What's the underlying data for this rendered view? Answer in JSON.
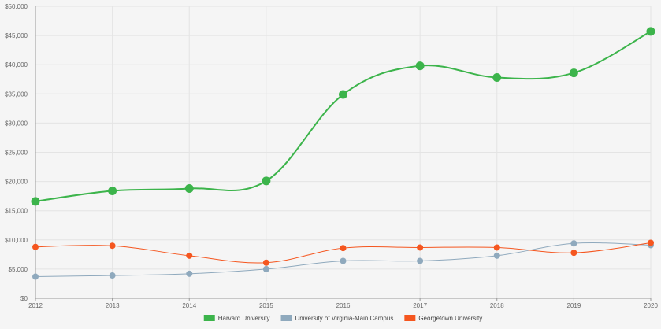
{
  "chart_data": {
    "type": "line",
    "title": "",
    "xlabel": "",
    "ylabel": "",
    "categories": [
      "2012",
      "2013",
      "2014",
      "2015",
      "2016",
      "2017",
      "2018",
      "2019",
      "2020"
    ],
    "ylim": [
      0,
      50000
    ],
    "y_ticks": [
      0,
      5000,
      10000,
      15000,
      20000,
      25000,
      30000,
      35000,
      40000,
      45000,
      50000
    ],
    "y_tick_labels": [
      "$0",
      "$5,000",
      "$10,000",
      "$15,000",
      "$20,000",
      "$25,000",
      "$30,000",
      "$35,000",
      "$40,000",
      "$45,000",
      "$50,000"
    ],
    "grid": true,
    "legend_position": "bottom-center",
    "series": [
      {
        "name": "Harvard University",
        "color": "#3cb44b",
        "values": [
          16600,
          18400,
          18800,
          20100,
          34900,
          39800,
          37800,
          38600,
          45700
        ]
      },
      {
        "name": "University of Virginia-Main Campus",
        "color": "#8fa9bd",
        "values": [
          3700,
          3900,
          4200,
          5000,
          6400,
          6400,
          7300,
          9400,
          9100
        ]
      },
      {
        "name": "Georgetown University",
        "color": "#f5561f",
        "values": [
          8800,
          9000,
          7300,
          6100,
          8600,
          8700,
          8700,
          7800,
          9500
        ]
      }
    ]
  }
}
